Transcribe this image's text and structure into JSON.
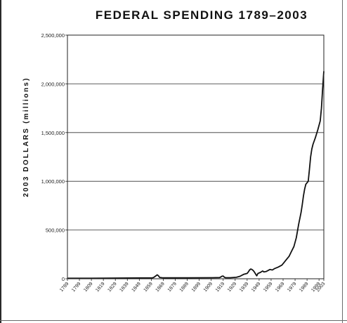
{
  "chart_data": {
    "type": "line",
    "title": "FEDERAL SPENDING 1789–2003",
    "ylabel": "2003 DOLLARS (millions)",
    "xlabel": "",
    "xlim": [
      1789,
      2003
    ],
    "ylim": [
      0,
      2500000
    ],
    "grid": true,
    "yticks": [
      0,
      500000,
      1000000,
      1500000,
      2000000,
      2500000
    ],
    "ytick_labels": [
      "0",
      "500,000",
      "1,000,000",
      "1,500,000",
      "2,000,000",
      "2,500,000"
    ],
    "xtick_labels": [
      "1789",
      "1799",
      "1809",
      "1819",
      "1829",
      "1839",
      "1849",
      "1859",
      "1869",
      "1879",
      "1889",
      "1899",
      "1909",
      "1919",
      "1929",
      "1939",
      "1949",
      "1959",
      "1969",
      "1979",
      "1989",
      "1999",
      "2003"
    ],
    "series": [
      {
        "color": "#111111",
        "x": [
          1789,
          1800,
          1820,
          1840,
          1860,
          1861,
          1862,
          1863,
          1864,
          1865,
          1866,
          1868,
          1870,
          1890,
          1910,
          1916,
          1917,
          1918,
          1919,
          1920,
          1921,
          1925,
          1930,
          1933,
          1936,
          1939,
          1940,
          1941,
          1942,
          1943,
          1944,
          1945,
          1946,
          1947,
          1948,
          1950,
          1952,
          1953,
          1955,
          1958,
          1960,
          1962,
          1965,
          1968,
          1970,
          1972,
          1974,
          1976,
          1978,
          1980,
          1982,
          1984,
          1985,
          1986,
          1987,
          1988,
          1990,
          1991,
          1992,
          1993,
          1994,
          1996,
          1998,
          2000,
          2001,
          2002,
          2003
        ],
        "y": [
          5000,
          5000,
          6000,
          8000,
          10000,
          14000,
          22000,
          32000,
          40000,
          30000,
          14000,
          11000,
          10000,
          10000,
          11000,
          12000,
          18000,
          26000,
          28000,
          16000,
          11000,
          11000,
          15000,
          25000,
          45000,
          55000,
          70000,
          90000,
          100000,
          95000,
          85000,
          70000,
          50000,
          30000,
          55000,
          65000,
          80000,
          70000,
          75000,
          95000,
          90000,
          105000,
          120000,
          140000,
          170000,
          200000,
          230000,
          280000,
          330000,
          420000,
          560000,
          680000,
          760000,
          850000,
          920000,
          970000,
          1000000,
          1120000,
          1250000,
          1330000,
          1380000,
          1450000,
          1530000,
          1620000,
          1750000,
          1950000,
          2130000
        ]
      }
    ]
  }
}
